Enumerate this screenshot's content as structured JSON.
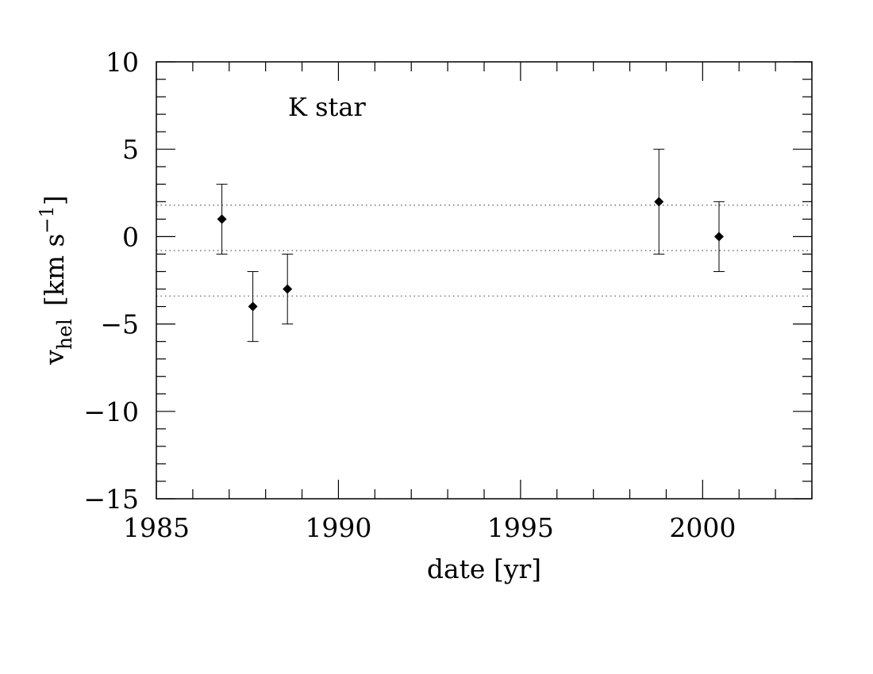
{
  "chart_data": {
    "type": "scatter",
    "annotation": "K star",
    "xlabel": "date [yr]",
    "ylabel": {
      "base": "v",
      "subscript": "hel",
      "unit_open": "[km s",
      "superscript": "−1",
      "unit_close": "]"
    },
    "xlim": [
      1985,
      2003
    ],
    "ylim": [
      -15,
      10
    ],
    "x_major_ticks": [
      1985,
      1990,
      1995,
      2000
    ],
    "x_tick_labels": [
      "1985",
      "1990",
      "1995",
      "2000"
    ],
    "x_minor_step": 1,
    "y_major_ticks": [
      -15,
      -10,
      -5,
      0,
      5,
      10
    ],
    "y_tick_labels": [
      "−15",
      "−10",
      "−5",
      "0",
      "5",
      "10"
    ],
    "y_minor_step": 1,
    "grid": false,
    "reference_lines": [
      1.8,
      -0.8,
      -3.4
    ],
    "series": [
      {
        "points": [
          {
            "x": 1986.8,
            "y": 1,
            "ylow": -1,
            "yhigh": 3
          },
          {
            "x": 1987.65,
            "y": -4,
            "ylow": -6,
            "yhigh": -2
          },
          {
            "x": 1988.6,
            "y": -3,
            "ylow": -5,
            "yhigh": -1
          },
          {
            "x": 1998.8,
            "y": 2,
            "ylow": -1,
            "yhigh": 5
          },
          {
            "x": 2000.45,
            "y": 0,
            "ylow": -2,
            "yhigh": 2
          }
        ]
      }
    ]
  }
}
